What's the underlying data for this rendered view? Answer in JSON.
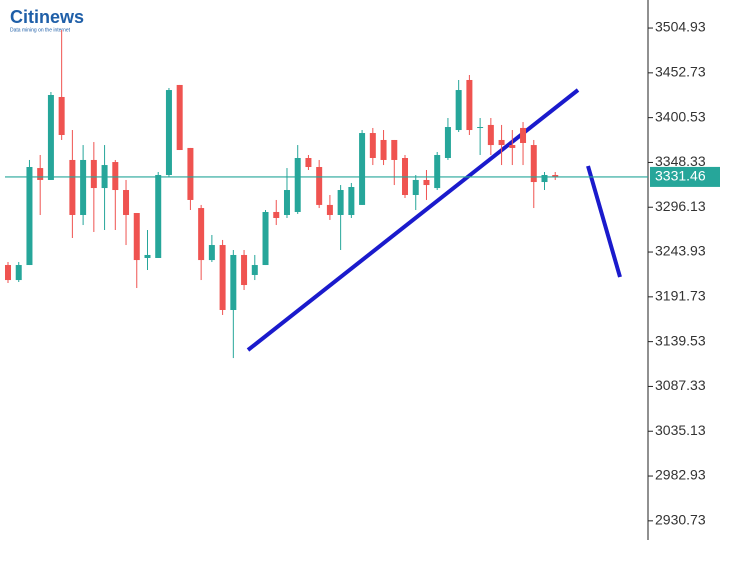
{
  "logo": {
    "brand": "Citinews",
    "tagline": "Data mining on the internet"
  },
  "chart_data": {
    "type": "candlestick",
    "up_color": "#26a69a",
    "down_color": "#ef5350",
    "open": [
      3228.8,
      3211.3,
      3228.8,
      3341.8,
      3327.9,
      3424.6,
      3351.2,
      3287.1,
      3351.2,
      3318.5,
      3348.8,
      3316.2,
      3289.4,
      3237.0,
      3237.0,
      3333.7,
      3438.6,
      3365.2,
      3295.2,
      3234.6,
      3252.1,
      3176.4,
      3240.5,
      3217.2,
      3228.8,
      3290.6,
      3287.1,
      3290.6,
      3353.5,
      3343.0,
      3298.8,
      3287.1,
      3287.1,
      3298.8,
      3382.6,
      3374.5,
      3374.5,
      3353.5,
      3310.4,
      3327.9,
      3318.5,
      3353.5,
      3386.1,
      3444.4,
      3388.5,
      3392.0,
      3374.5,
      3368.6,
      3388.5,
      3368.6,
      3325.5,
      3333.7
    ],
    "high": [
      3232.3,
      3232.3,
      3351.2,
      3357.0,
      3430.4,
      3502.6,
      3386.1,
      3368.6,
      3372.1,
      3368.6,
      3351.2,
      3327.9,
      3289.4,
      3269.6,
      3337.2,
      3435.1,
      3438.6,
      3365.2,
      3298.8,
      3263.8,
      3258.0,
      3246.3,
      3246.3,
      3240.5,
      3292.9,
      3304.6,
      3341.8,
      3368.6,
      3357.0,
      3351.2,
      3310.4,
      3322.0,
      3324.4,
      3386.1,
      3388.5,
      3386.1,
      3374.5,
      3357.0,
      3333.7,
      3339.5,
      3360.5,
      3400.1,
      3444.4,
      3450.2,
      3400.1,
      3400.1,
      3392.0,
      3386.1,
      3395.4,
      3374.5,
      3337.2,
      3337.2
    ],
    "low": [
      3207.8,
      3209.0,
      3228.8,
      3287.1,
      3327.9,
      3374.5,
      3260.3,
      3275.4,
      3267.3,
      3269.6,
      3269.6,
      3252.1,
      3202.0,
      3223.0,
      3237.0,
      3331.4,
      3362.8,
      3292.9,
      3211.3,
      3232.3,
      3170.6,
      3120.4,
      3199.7,
      3211.3,
      3228.8,
      3275.4,
      3283.6,
      3288.3,
      3339.5,
      3295.2,
      3281.3,
      3246.3,
      3283.6,
      3298.8,
      3345.3,
      3345.3,
      3322.0,
      3306.9,
      3292.9,
      3304.6,
      3316.2,
      3351.2,
      3383.8,
      3380.3,
      3357.0,
      3357.0,
      3345.3,
      3345.3,
      3345.3,
      3295.2,
      3316.2,
      3327.9
    ],
    "close": [
      3211.3,
      3228.8,
      3343.0,
      3327.9,
      3426.9,
      3380.3,
      3287.1,
      3351.2,
      3318.5,
      3345.3,
      3316.2,
      3287.1,
      3234.6,
      3240.5,
      3333.7,
      3432.7,
      3362.8,
      3304.6,
      3234.6,
      3252.1,
      3176.4,
      3240.5,
      3205.5,
      3228.8,
      3290.6,
      3283.6,
      3316.2,
      3353.5,
      3343.0,
      3298.8,
      3287.1,
      3316.2,
      3319.7,
      3382.6,
      3353.5,
      3351.2,
      3351.2,
      3310.4,
      3327.9,
      3322.0,
      3357.0,
      3389.6,
      3432.7,
      3386.1,
      3389.6,
      3368.6,
      3368.6,
      3365.2,
      3371.0,
      3325.5,
      3333.7,
      3331.4
    ],
    "last_price": 3331.46,
    "last_price_color": "#26a69a",
    "ylim": [
      2908.4,
      3537.6
    ],
    "yticks": [
      3504.93,
      3452.73,
      3400.53,
      3348.33,
      3296.13,
      3243.93,
      3191.73,
      3139.53,
      3087.33,
      3035.13,
      2982.93,
      2930.73
    ]
  }
}
